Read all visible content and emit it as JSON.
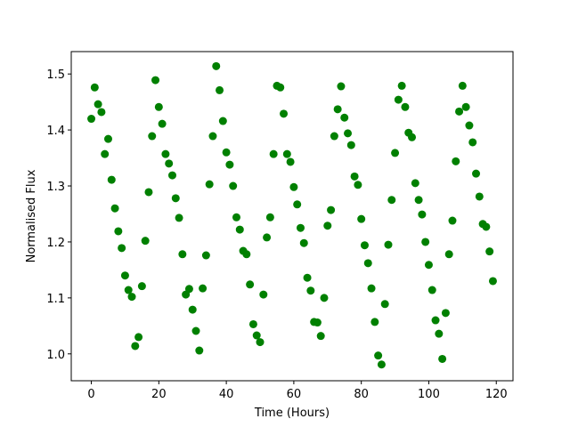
{
  "chart_data": {
    "type": "scatter",
    "xlabel": "Time (Hours)",
    "ylabel": "Normalised Flux",
    "color": "#008000",
    "x": [
      0,
      1,
      2,
      3,
      4,
      5,
      6,
      7,
      8,
      9,
      10,
      11,
      12,
      13,
      14,
      15,
      16,
      17,
      18,
      19,
      20,
      21,
      22,
      23,
      24,
      25,
      26,
      27,
      28,
      29,
      30,
      31,
      32,
      33,
      34,
      35,
      36,
      37,
      38,
      39,
      40,
      41,
      42,
      43,
      44,
      45,
      46,
      47,
      48,
      49,
      50,
      51,
      52,
      53,
      54,
      55,
      56,
      57,
      58,
      59,
      60,
      61,
      62,
      63,
      64,
      65,
      66,
      67,
      68,
      69,
      70,
      71,
      72,
      73,
      74,
      75,
      76,
      77,
      78,
      79,
      80,
      81,
      82,
      83,
      84,
      85,
      86,
      87,
      88,
      89,
      90,
      91,
      92,
      93,
      94,
      95,
      96,
      97,
      98,
      99,
      100,
      101,
      102,
      103,
      104,
      105,
      106,
      107,
      108,
      109,
      110,
      111,
      112,
      113,
      114,
      115,
      116,
      117,
      118,
      119
    ],
    "values": [
      1.42,
      1.476,
      1.446,
      1.432,
      1.357,
      1.384,
      1.311,
      1.26,
      1.219,
      1.189,
      1.14,
      1.114,
      1.102,
      1.014,
      1.03,
      1.121,
      1.202,
      1.289,
      1.389,
      1.489,
      1.441,
      1.411,
      1.357,
      1.34,
      1.319,
      1.278,
      1.243,
      1.178,
      1.106,
      1.116,
      1.079,
      1.041,
      1.006,
      1.117,
      1.176,
      1.303,
      1.389,
      1.514,
      1.471,
      1.416,
      1.36,
      1.338,
      1.3,
      1.244,
      1.222,
      1.184,
      1.178,
      1.124,
      1.053,
      1.033,
      1.021,
      1.106,
      1.208,
      1.244,
      1.357,
      1.479,
      1.476,
      1.429,
      1.357,
      1.343,
      1.298,
      1.267,
      1.225,
      1.198,
      1.136,
      1.113,
      1.057,
      1.056,
      1.032,
      1.1,
      1.229,
      1.257,
      1.389,
      1.437,
      1.478,
      1.422,
      1.394,
      1.373,
      1.317,
      1.302,
      1.241,
      1.194,
      1.162,
      1.117,
      1.057,
      0.997,
      0.981,
      1.089,
      1.195,
      1.275,
      1.359,
      1.454,
      1.479,
      1.441,
      1.395,
      1.387,
      1.305,
      1.275,
      1.249,
      1.2,
      1.159,
      1.114,
      1.06,
      1.036,
      0.991,
      1.073,
      1.178,
      1.238,
      1.344,
      1.433,
      1.479,
      1.441,
      1.408,
      1.378,
      1.322,
      1.281,
      1.232,
      1.227,
      1.183,
      1.13
    ],
    "xlim": [
      -5.95,
      124.95
    ],
    "xticks": [
      0,
      20,
      40,
      60,
      80,
      100,
      120
    ],
    "ylim": [
      0.952,
      1.54
    ],
    "yticks": [
      {
        "value": 1,
        "label": "1.0"
      },
      1.1,
      1.2,
      1.3,
      1.4,
      1.5
    ]
  }
}
